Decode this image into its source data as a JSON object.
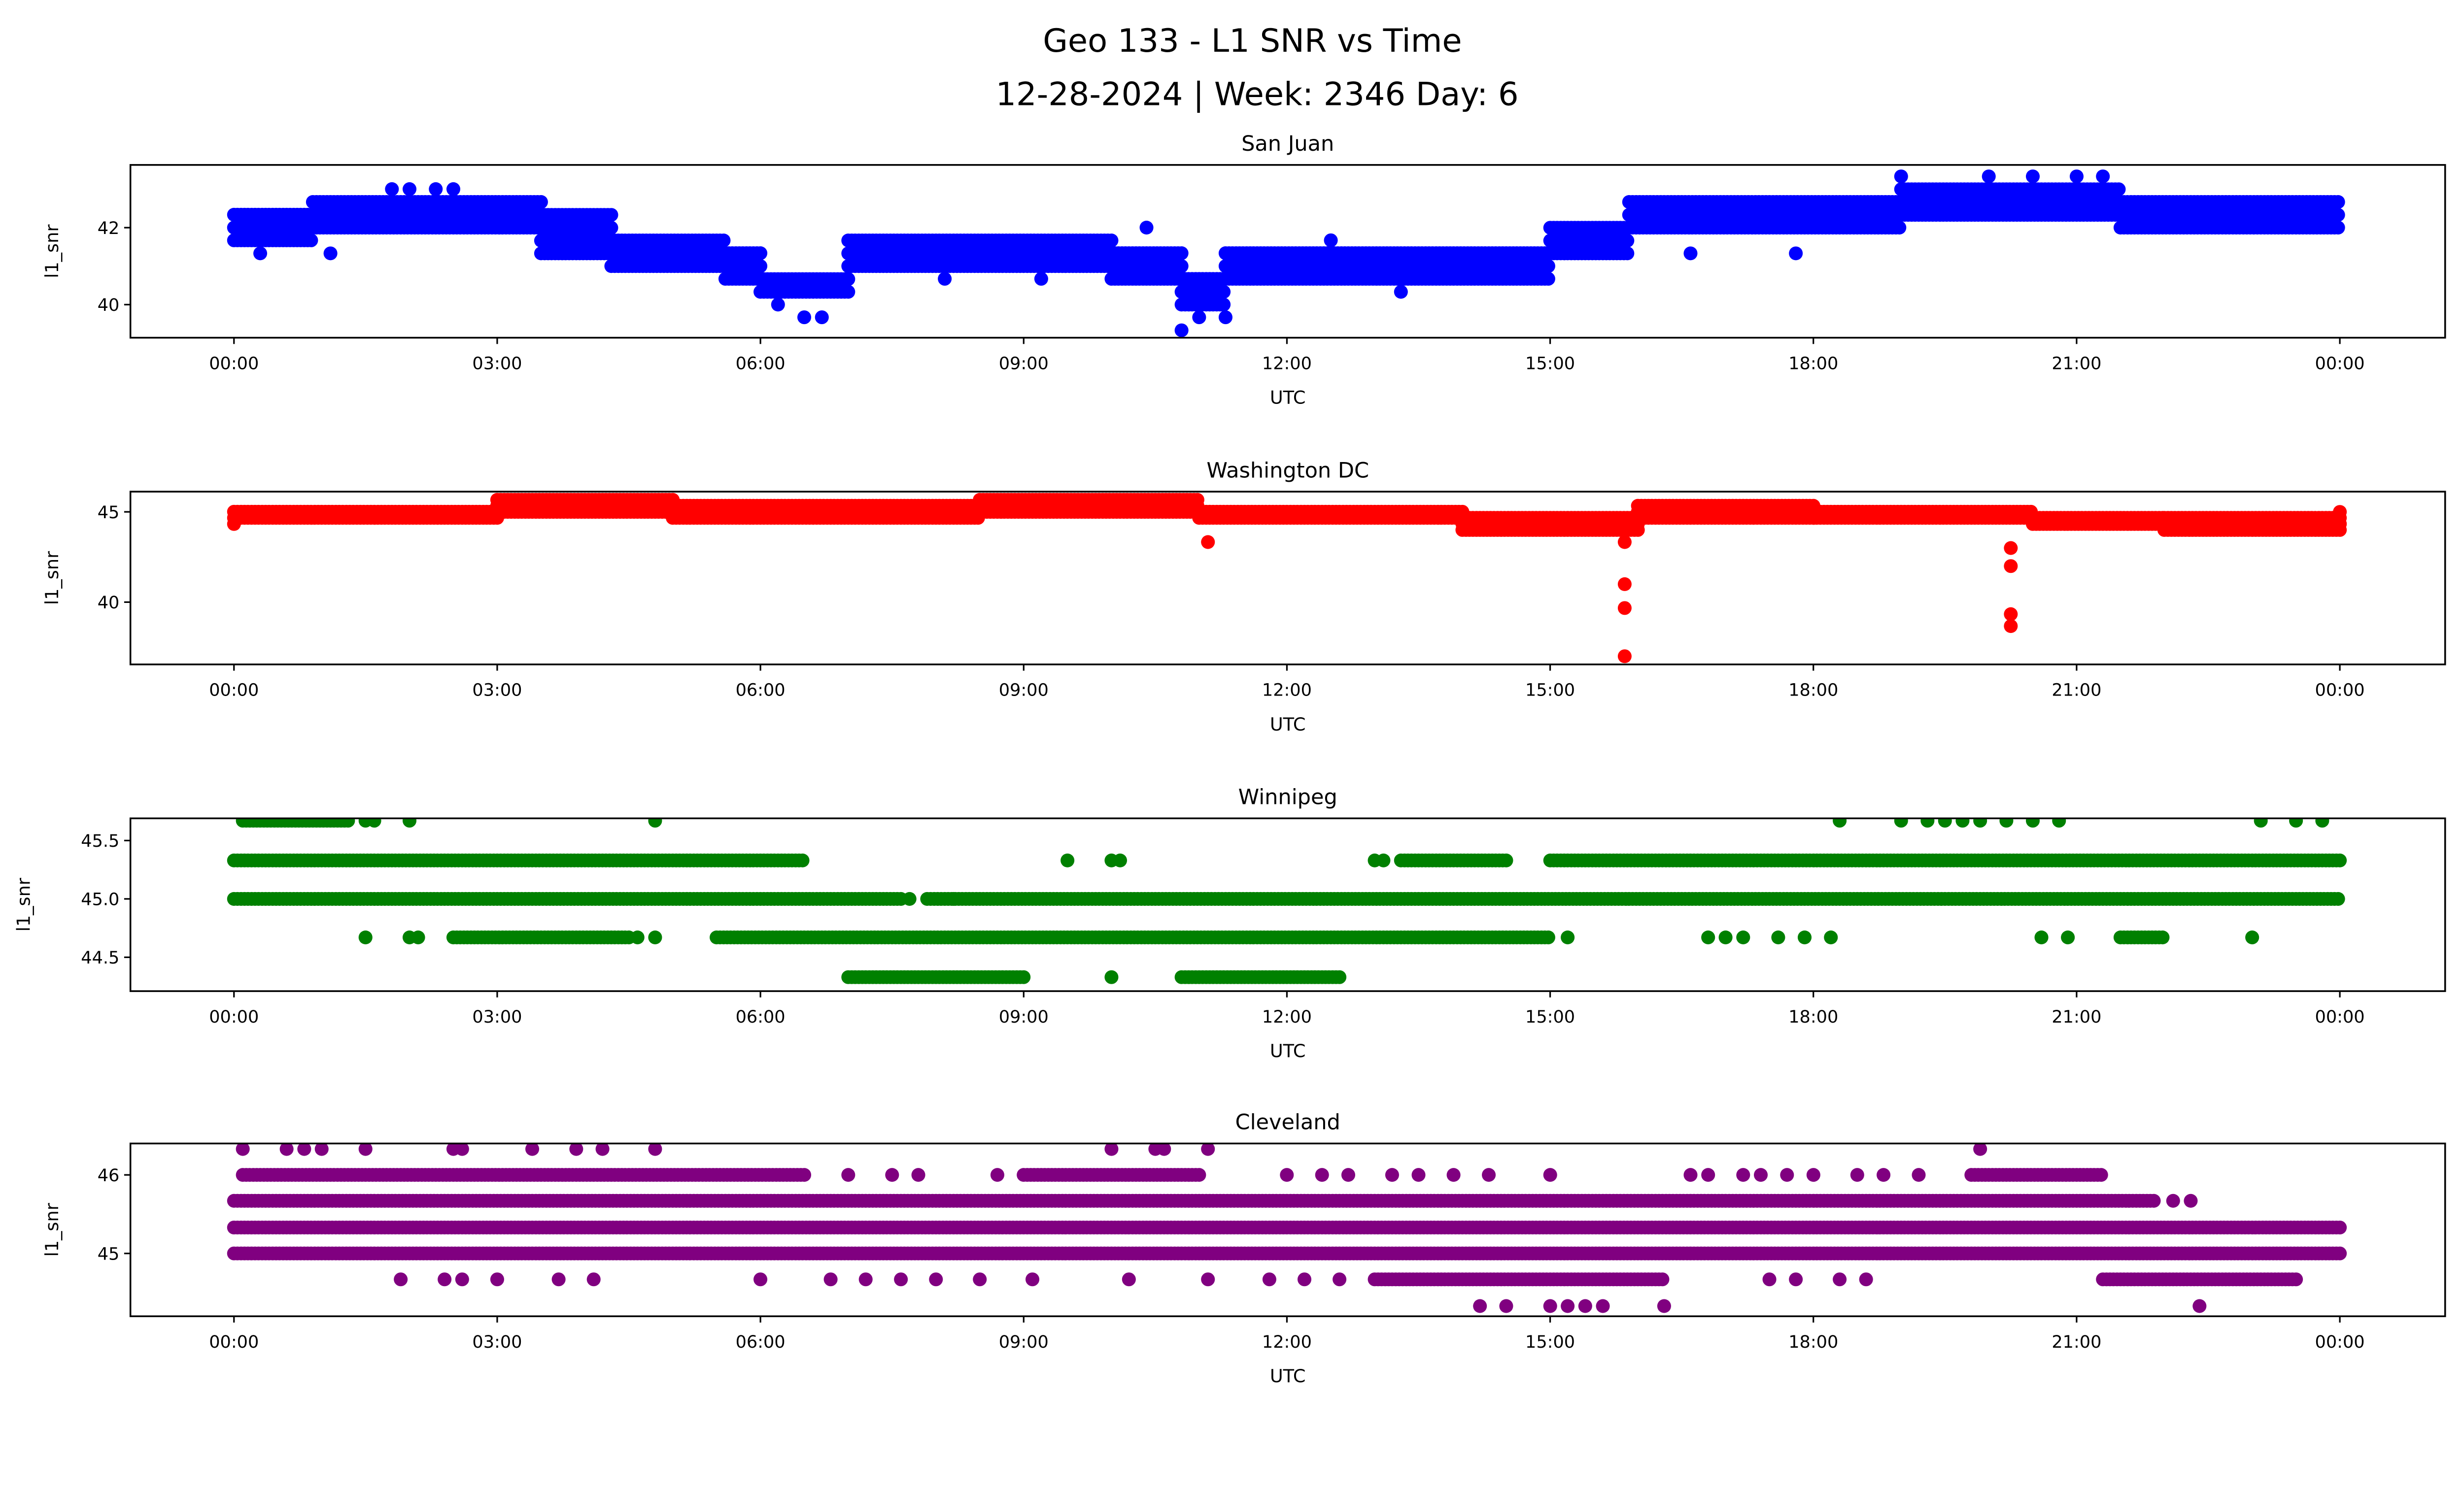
{
  "figure": {
    "title_line1": "Geo 133 - L1 SNR vs Time",
    "title_line2": "12-28-2024 | Week: 2346 Day: 6"
  },
  "chart_data": [
    {
      "type": "scatter",
      "title": "San Juan",
      "xlabel": "UTC",
      "ylabel": "l1_snr",
      "color": "#0000ff",
      "xlim": [
        -1.18,
        25.2
      ],
      "ylim": [
        39.14,
        43.63
      ],
      "xticks": [
        0,
        3,
        6,
        9,
        12,
        15,
        18,
        21,
        24
      ],
      "xtick_labels": [
        "00:00",
        "03:00",
        "06:00",
        "09:00",
        "12:00",
        "15:00",
        "18:00",
        "21:00",
        "00:00"
      ],
      "yticks": [
        40,
        42
      ],
      "ytick_labels": [
        "40",
        "42"
      ],
      "bands": [
        [
          0,
          0.9,
          41.67,
          42.33
        ],
        [
          0.9,
          3.5,
          42.0,
          42.67
        ],
        [
          3.5,
          4.3,
          41.33,
          42.33
        ],
        [
          4.3,
          5.6,
          41.0,
          41.67
        ],
        [
          5.6,
          6.0,
          40.67,
          41.33
        ],
        [
          6.0,
          7.0,
          40.33,
          40.67
        ],
        [
          7.0,
          10.0,
          41.0,
          41.67
        ],
        [
          10.0,
          10.8,
          40.67,
          41.33
        ],
        [
          10.8,
          11.3,
          40.0,
          40.67
        ],
        [
          11.3,
          15.0,
          40.67,
          41.33
        ],
        [
          15.0,
          15.9,
          41.33,
          42.0
        ],
        [
          15.9,
          19.0,
          42.0,
          42.67
        ],
        [
          19.0,
          21.5,
          42.33,
          43.0
        ],
        [
          21.5,
          24.0,
          42.0,
          42.67
        ]
      ],
      "points": [
        [
          1.8,
          43.0
        ],
        [
          2.0,
          43.0
        ],
        [
          2.3,
          43.0
        ],
        [
          2.5,
          43.0
        ],
        [
          0.3,
          41.33
        ],
        [
          1.1,
          41.33
        ],
        [
          6.5,
          39.67
        ],
        [
          6.7,
          39.67
        ],
        [
          10.8,
          39.33
        ],
        [
          11.0,
          39.67
        ],
        [
          11.3,
          39.67
        ],
        [
          10.4,
          42.0
        ],
        [
          16.6,
          41.33
        ],
        [
          17.8,
          41.33
        ],
        [
          19.0,
          43.33
        ],
        [
          20.0,
          43.33
        ],
        [
          20.5,
          43.33
        ],
        [
          21.0,
          43.33
        ],
        [
          21.3,
          43.33
        ],
        [
          8.1,
          40.67
        ],
        [
          9.2,
          40.67
        ],
        [
          6.2,
          40.0
        ],
        [
          12.5,
          41.67
        ],
        [
          13.3,
          40.33
        ]
      ]
    },
    {
      "type": "scatter",
      "title": "Washington DC",
      "xlabel": "UTC",
      "ylabel": "l1_snr",
      "color": "#ff0000",
      "xlim": [
        -1.18,
        25.2
      ],
      "ylim": [
        36.55,
        46.12
      ],
      "xticks": [
        0,
        3,
        6,
        9,
        12,
        15,
        18,
        21,
        24
      ],
      "xtick_labels": [
        "00:00",
        "03:00",
        "06:00",
        "09:00",
        "12:00",
        "15:00",
        "18:00",
        "21:00",
        "00:00"
      ],
      "yticks": [
        40,
        45
      ],
      "ytick_labels": [
        "40",
        "45"
      ],
      "bands": [
        [
          0,
          3,
          44.67,
          45.0
        ],
        [
          3,
          5,
          45.0,
          45.67
        ],
        [
          5,
          8.5,
          44.67,
          45.33
        ],
        [
          8.5,
          11,
          45.0,
          45.67
        ],
        [
          11,
          14,
          44.67,
          45.0
        ],
        [
          14,
          16,
          44.0,
          44.67
        ],
        [
          16,
          18,
          44.67,
          45.33
        ],
        [
          18,
          20.5,
          44.67,
          45.0
        ],
        [
          20.5,
          22,
          44.33,
          44.67
        ],
        [
          22,
          24,
          44.0,
          44.67
        ]
      ],
      "points": [
        [
          11.1,
          43.33
        ],
        [
          15.85,
          43.33
        ],
        [
          15.85,
          41.0
        ],
        [
          15.85,
          39.67
        ],
        [
          15.85,
          37.0
        ],
        [
          20.25,
          43.0
        ],
        [
          20.25,
          42.0
        ],
        [
          20.25,
          39.33
        ],
        [
          20.25,
          38.67
        ],
        [
          0,
          44.33
        ],
        [
          24,
          44.33
        ],
        [
          24,
          45.0
        ]
      ]
    },
    {
      "type": "scatter",
      "title": "Winnipeg",
      "xlabel": "UTC",
      "ylabel": "l1_snr",
      "color": "#008000",
      "xlim": [
        -1.18,
        25.2
      ],
      "ylim": [
        44.21,
        45.69
      ],
      "xticks": [
        0,
        3,
        6,
        9,
        12,
        15,
        18,
        21,
        24
      ],
      "xtick_labels": [
        "00:00",
        "03:00",
        "06:00",
        "09:00",
        "12:00",
        "15:00",
        "18:00",
        "21:00",
        "00:00"
      ],
      "yticks": [
        44.5,
        45.0,
        45.5
      ],
      "ytick_labels": [
        "44.5",
        "45.0",
        "45.5"
      ],
      "bands": [
        [
          0,
          7.6,
          45.0,
          45.0
        ],
        [
          7.9,
          24,
          45.0,
          45.0
        ],
        [
          0,
          6.5,
          45.33,
          45.33
        ],
        [
          13.3,
          14.5,
          45.33,
          45.33
        ],
        [
          15,
          24,
          45.33,
          45.33
        ],
        [
          2.5,
          4.5,
          44.67,
          44.67
        ],
        [
          5.5,
          15,
          44.67,
          44.67
        ],
        [
          21.5,
          22,
          44.67,
          44.67
        ],
        [
          7.0,
          9.0,
          44.33,
          44.33
        ],
        [
          10.8,
          12.6,
          44.33,
          44.33
        ],
        [
          0.1,
          1.3,
          45.67,
          45.67
        ]
      ],
      "points": [
        [
          1.5,
          45.67
        ],
        [
          1.6,
          45.67
        ],
        [
          2.0,
          45.67
        ],
        [
          4.8,
          45.67
        ],
        [
          18.3,
          45.67
        ],
        [
          19.0,
          45.67
        ],
        [
          19.3,
          45.67
        ],
        [
          19.5,
          45.67
        ],
        [
          19.7,
          45.67
        ],
        [
          19.9,
          45.67
        ],
        [
          20.2,
          45.67
        ],
        [
          20.5,
          45.67
        ],
        [
          20.8,
          45.67
        ],
        [
          23.1,
          45.67
        ],
        [
          23.5,
          45.67
        ],
        [
          23.8,
          45.67
        ],
        [
          1.5,
          44.67
        ],
        [
          2.0,
          44.67
        ],
        [
          2.1,
          44.67
        ],
        [
          4.8,
          44.67
        ],
        [
          4.6,
          44.67
        ],
        [
          20.6,
          44.67
        ],
        [
          20.9,
          44.67
        ],
        [
          23.0,
          44.67
        ],
        [
          15.2,
          44.67
        ],
        [
          16.8,
          44.67
        ],
        [
          17.0,
          44.67
        ],
        [
          17.2,
          44.67
        ],
        [
          17.6,
          44.67
        ],
        [
          17.9,
          44.67
        ],
        [
          18.2,
          44.67
        ],
        [
          9.5,
          45.33
        ],
        [
          10.0,
          45.33
        ],
        [
          10.1,
          45.33
        ],
        [
          13.0,
          45.33
        ],
        [
          13.1,
          45.33
        ],
        [
          7.7,
          45.0
        ],
        [
          8.2,
          45.0
        ],
        [
          10.0,
          44.33
        ]
      ]
    },
    {
      "type": "scatter",
      "title": "Cleveland",
      "xlabel": "UTC",
      "ylabel": "l1_snr",
      "color": "#800080",
      "xlim": [
        -1.18,
        25.2
      ],
      "ylim": [
        44.2,
        46.4
      ],
      "xticks": [
        0,
        3,
        6,
        9,
        12,
        15,
        18,
        21,
        24
      ],
      "xtick_labels": [
        "00:00",
        "03:00",
        "06:00",
        "09:00",
        "12:00",
        "15:00",
        "18:00",
        "21:00",
        "00:00"
      ],
      "yticks": [
        45,
        46
      ],
      "ytick_labels": [
        "45",
        "46"
      ],
      "bands": [
        [
          0,
          24,
          45.33,
          45.33
        ],
        [
          0,
          21.9,
          45.67,
          45.67
        ],
        [
          0,
          24,
          45.0,
          45.0
        ],
        [
          0.1,
          6.5,
          46.0,
          46.0
        ],
        [
          9,
          11,
          46.0,
          46.0
        ],
        [
          19.8,
          21.3,
          46.0,
          46.0
        ],
        [
          13,
          16.3,
          44.67,
          44.67
        ],
        [
          21.3,
          23.5,
          44.67,
          44.67
        ]
      ],
      "points": [
        [
          14.2,
          44.33
        ],
        [
          14.5,
          44.33
        ],
        [
          15.0,
          44.33
        ],
        [
          15.2,
          44.33
        ],
        [
          15.4,
          44.33
        ],
        [
          15.6,
          44.33
        ],
        [
          16.3,
          44.33
        ],
        [
          22.4,
          44.33
        ],
        [
          0.1,
          46.33
        ],
        [
          0.6,
          46.33
        ],
        [
          0.8,
          46.33
        ],
        [
          1.0,
          46.33
        ],
        [
          1.5,
          46.33
        ],
        [
          2.5,
          46.33
        ],
        [
          2.6,
          46.33
        ],
        [
          3.4,
          46.33
        ],
        [
          3.9,
          46.33
        ],
        [
          4.2,
          46.33
        ],
        [
          4.8,
          46.33
        ],
        [
          10.0,
          46.33
        ],
        [
          10.5,
          46.33
        ],
        [
          10.6,
          46.33
        ],
        [
          11.1,
          46.33
        ],
        [
          19.9,
          46.33
        ],
        [
          7.0,
          46.0
        ],
        [
          7.5,
          46.0
        ],
        [
          7.8,
          46.0
        ],
        [
          8.7,
          46.0
        ],
        [
          12.0,
          46.0
        ],
        [
          12.4,
          46.0
        ],
        [
          12.7,
          46.0
        ],
        [
          13.2,
          46.0
        ],
        [
          13.5,
          46.0
        ],
        [
          13.9,
          46.0
        ],
        [
          14.3,
          46.0
        ],
        [
          15.0,
          46.0
        ],
        [
          16.6,
          46.0
        ],
        [
          16.8,
          46.0
        ],
        [
          17.2,
          46.0
        ],
        [
          17.4,
          46.0
        ],
        [
          17.7,
          46.0
        ],
        [
          18.0,
          46.0
        ],
        [
          18.5,
          46.0
        ],
        [
          18.8,
          46.0
        ],
        [
          19.2,
          46.0
        ],
        [
          1.9,
          44.67
        ],
        [
          2.4,
          44.67
        ],
        [
          2.6,
          44.67
        ],
        [
          3.0,
          44.67
        ],
        [
          3.7,
          44.67
        ],
        [
          4.1,
          44.67
        ],
        [
          6.0,
          44.67
        ],
        [
          6.8,
          44.67
        ],
        [
          7.2,
          44.67
        ],
        [
          7.6,
          44.67
        ],
        [
          8.0,
          44.67
        ],
        [
          8.5,
          44.67
        ],
        [
          9.1,
          44.67
        ],
        [
          10.2,
          44.67
        ],
        [
          11.1,
          44.67
        ],
        [
          11.8,
          44.67
        ],
        [
          12.2,
          44.67
        ],
        [
          12.6,
          44.67
        ],
        [
          17.5,
          44.67
        ],
        [
          17.8,
          44.67
        ],
        [
          18.3,
          44.67
        ],
        [
          18.6,
          44.67
        ],
        [
          22.1,
          45.67
        ],
        [
          22.3,
          45.67
        ]
      ]
    }
  ]
}
